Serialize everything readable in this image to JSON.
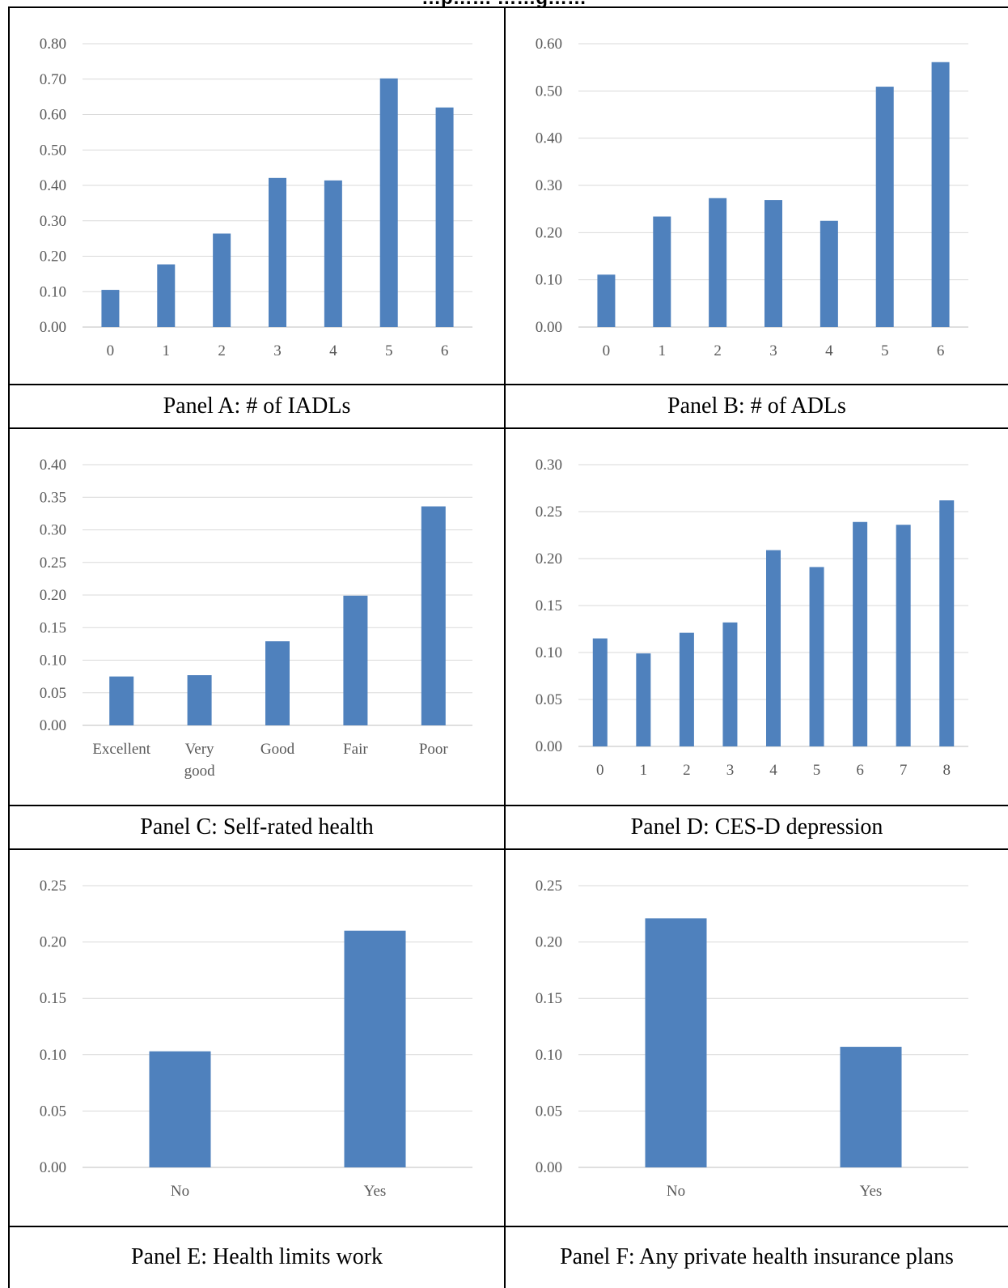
{
  "page": {
    "title": "…p…… ……g……"
  },
  "colors": {
    "bar": "#4f81bd",
    "grid": "#d9d9d9",
    "axis": "#bfbfbf",
    "tick_text": "#595959"
  },
  "panels": [
    {
      "caption": "Panel A: # of IADLs"
    },
    {
      "caption": "Panel B: # of ADLs"
    },
    {
      "caption": "Panel C: Self-rated health"
    },
    {
      "caption": "Panel D: CES-D depression"
    },
    {
      "caption": "Panel E: Health limits work"
    },
    {
      "caption": "Panel F: Any private health insurance plans"
    }
  ],
  "chart_data": [
    {
      "type": "bar",
      "categories": [
        "0",
        "1",
        "2",
        "3",
        "4",
        "5",
        "6"
      ],
      "values": [
        0.105,
        0.177,
        0.264,
        0.421,
        0.414,
        0.702,
        0.62
      ],
      "yticks": [
        "0.00",
        "0.10",
        "0.20",
        "0.30",
        "0.40",
        "0.50",
        "0.60",
        "0.70",
        "0.80"
      ],
      "ylim": [
        0,
        0.8
      ],
      "grid": true,
      "xlabel": "",
      "ylabel": ""
    },
    {
      "type": "bar",
      "categories": [
        "0",
        "1",
        "2",
        "3",
        "4",
        "5",
        "6"
      ],
      "values": [
        0.111,
        0.234,
        0.273,
        0.269,
        0.225,
        0.509,
        0.561
      ],
      "yticks": [
        "0.00",
        "0.10",
        "0.20",
        "0.30",
        "0.40",
        "0.50",
        "0.60"
      ],
      "ylim": [
        0,
        0.6
      ],
      "grid": true,
      "xlabel": "",
      "ylabel": ""
    },
    {
      "type": "bar",
      "categories": [
        "Excellent",
        "Very good",
        "Good",
        "Fair",
        "Poor"
      ],
      "category_lines": [
        [
          "Excellent"
        ],
        [
          "Very",
          "good"
        ],
        [
          "Good"
        ],
        [
          "Fair"
        ],
        [
          "Poor"
        ]
      ],
      "values": [
        0.075,
        0.077,
        0.129,
        0.199,
        0.336
      ],
      "yticks": [
        "0.00",
        "0.05",
        "0.10",
        "0.15",
        "0.20",
        "0.25",
        "0.30",
        "0.35",
        "0.40"
      ],
      "ylim": [
        0,
        0.4
      ],
      "grid": true,
      "xlabel": "",
      "ylabel": ""
    },
    {
      "type": "bar",
      "categories": [
        "0",
        "1",
        "2",
        "3",
        "4",
        "5",
        "6",
        "7",
        "8"
      ],
      "values": [
        0.115,
        0.099,
        0.121,
        0.132,
        0.209,
        0.191,
        0.239,
        0.236,
        0.262
      ],
      "yticks": [
        "0.00",
        "0.05",
        "0.10",
        "0.15",
        "0.20",
        "0.25",
        "0.30"
      ],
      "ylim": [
        0,
        0.3
      ],
      "grid": true,
      "xlabel": "",
      "ylabel": ""
    },
    {
      "type": "bar",
      "categories": [
        "No",
        "Yes"
      ],
      "values": [
        0.103,
        0.21
      ],
      "yticks": [
        "0.00",
        "0.05",
        "0.10",
        "0.15",
        "0.20",
        "0.25"
      ],
      "ylim": [
        0,
        0.25
      ],
      "grid": true,
      "xlabel": "",
      "ylabel": ""
    },
    {
      "type": "bar",
      "categories": [
        "No",
        "Yes"
      ],
      "values": [
        0.221,
        0.107
      ],
      "yticks": [
        "0.00",
        "0.05",
        "0.10",
        "0.15",
        "0.20",
        "0.25"
      ],
      "ylim": [
        0,
        0.25
      ],
      "grid": true,
      "xlabel": "",
      "ylabel": ""
    }
  ]
}
